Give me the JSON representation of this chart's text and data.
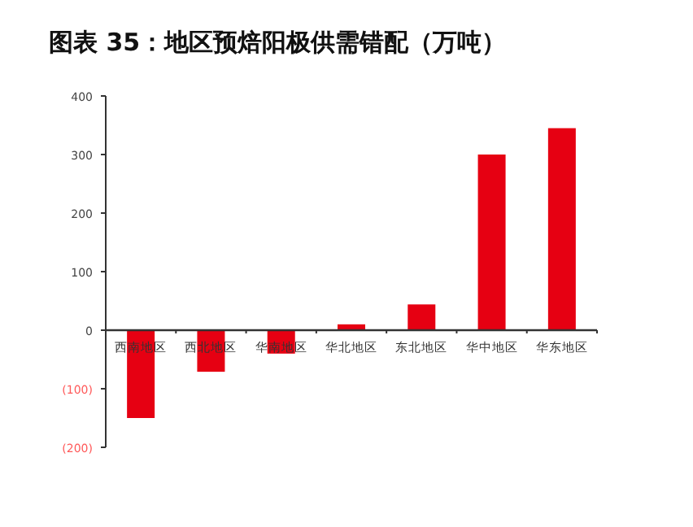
{
  "chart_data": {
    "type": "bar",
    "title": "图表 35：地区预焙阳极供需错配（万吨）",
    "categories": [
      "西南地区",
      "西北地区",
      "华南地区",
      "华北地区",
      "东北地区",
      "华中地区",
      "华东地区"
    ],
    "values": [
      -150,
      -71,
      -40,
      10,
      44,
      300,
      345
    ],
    "color": "#e60012",
    "ylim": [
      -200,
      400
    ],
    "yticks": [
      {
        "value": -200,
        "label": "(200)"
      },
      {
        "value": -100,
        "label": "(100)"
      },
      0,
      100,
      200,
      300,
      400
    ],
    "grid": false
  }
}
